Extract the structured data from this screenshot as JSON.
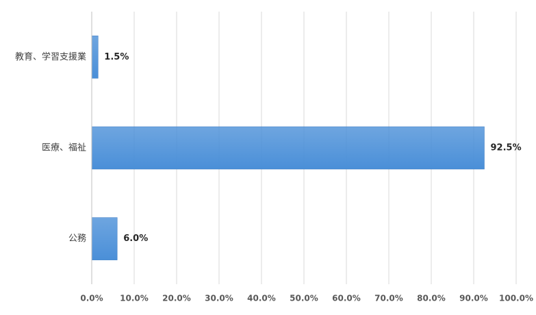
{
  "chart_data": {
    "type": "hbar",
    "categories": [
      "教育、学習支援業",
      "医療、福祉",
      "公務"
    ],
    "values": [
      1.5,
      92.5,
      6.0
    ],
    "value_labels": [
      "1.5%",
      "92.5%",
      "6.0%"
    ],
    "color": "#4a8fd8",
    "xlim": [
      0,
      100
    ],
    "xticks": [
      {
        "value": 0,
        "label": "0.0%"
      },
      {
        "value": 10,
        "label": "10.0%"
      },
      {
        "value": 20,
        "label": "20.0%"
      },
      {
        "value": 30,
        "label": "30.0%"
      },
      {
        "value": 40,
        "label": "40.0%"
      },
      {
        "value": 50,
        "label": "50.0%"
      },
      {
        "value": 60,
        "label": "60.0%"
      },
      {
        "value": 70,
        "label": "70.0%"
      },
      {
        "value": 80,
        "label": "80.0%"
      },
      {
        "value": 90,
        "label": "90.0%"
      },
      {
        "value": 100,
        "label": "100.0%"
      }
    ],
    "grid": true
  }
}
